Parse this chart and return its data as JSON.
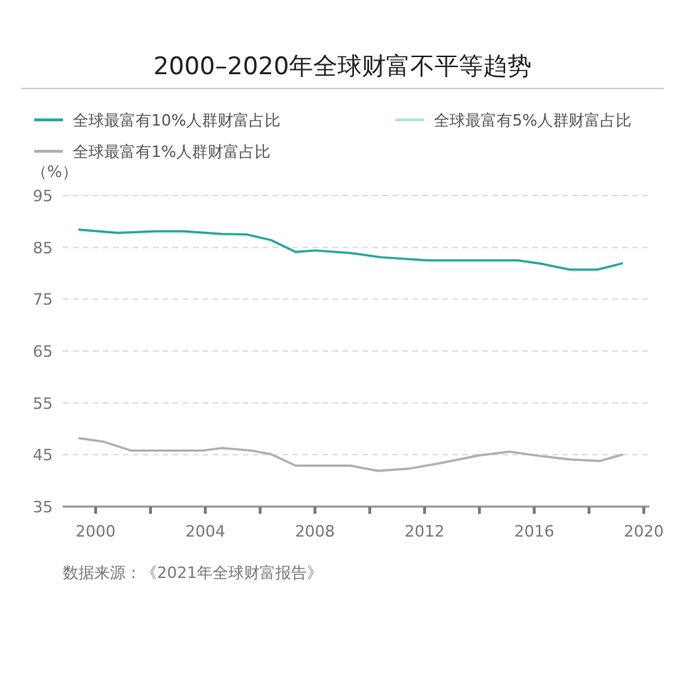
{
  "chart_data": {
    "type": "line",
    "title": "2000–2020年全球财富不平等趋势",
    "ylabel": "（%）",
    "series": [
      {
        "name": "全球最富有10%人群财富占比",
        "color": "#2aa99a",
        "x": [
          1999.4,
          2000.8,
          2002.2,
          2003.2,
          2004.6,
          2005.5,
          2006.4,
          2007.3,
          2008.0,
          2009.3,
          2010.4,
          2012.1,
          2015.4,
          2016.3,
          2017.3,
          2018.3,
          2019.2
        ],
        "values": [
          88.4,
          87.8,
          88.1,
          88.1,
          87.6,
          87.5,
          86.4,
          84.1,
          84.4,
          83.9,
          83.1,
          82.5,
          82.5,
          81.8,
          80.7,
          80.7,
          81.9
        ]
      },
      {
        "name": "全球最富有5%人群财富占比",
        "color": "#b5e3dc"
      },
      {
        "name": "全球最富有1%人群财富占比",
        "color": "#b0b0b0",
        "x": [
          1999.4,
          2000.3,
          2001.3,
          2002.2,
          2003.9,
          2004.6,
          2005.7,
          2006.4,
          2007.3,
          2009.3,
          2010.3,
          2011.4,
          2012.5,
          2014.0,
          2015.1,
          2016.3,
          2017.3,
          2018.4,
          2019.2
        ],
        "values": [
          48.2,
          47.5,
          45.8,
          45.8,
          45.8,
          46.3,
          45.8,
          45.1,
          42.9,
          42.9,
          41.9,
          42.3,
          43.3,
          44.9,
          45.6,
          44.7,
          44.1,
          43.8,
          45.0
        ]
      }
    ],
    "xlim": [
      1998.8,
      2020.2
    ],
    "xticks": [
      2000,
      {
        "value": 2002,
        "label": null
      },
      2004,
      {
        "value": 2006,
        "label": null
      },
      2008,
      {
        "value": 2010,
        "label": null
      },
      2012,
      {
        "value": 2014,
        "label": null
      },
      2016,
      {
        "value": 2018,
        "label": null
      },
      2020
    ],
    "ylim": [
      35,
      95
    ],
    "yticks": [
      35,
      45,
      55,
      65,
      75,
      85,
      95
    ],
    "grid": "y",
    "legend": "top",
    "line_style": "solid",
    "marker": "none",
    "annotations": [
      "数据来源：《2021年全球财富报告》"
    ]
  }
}
